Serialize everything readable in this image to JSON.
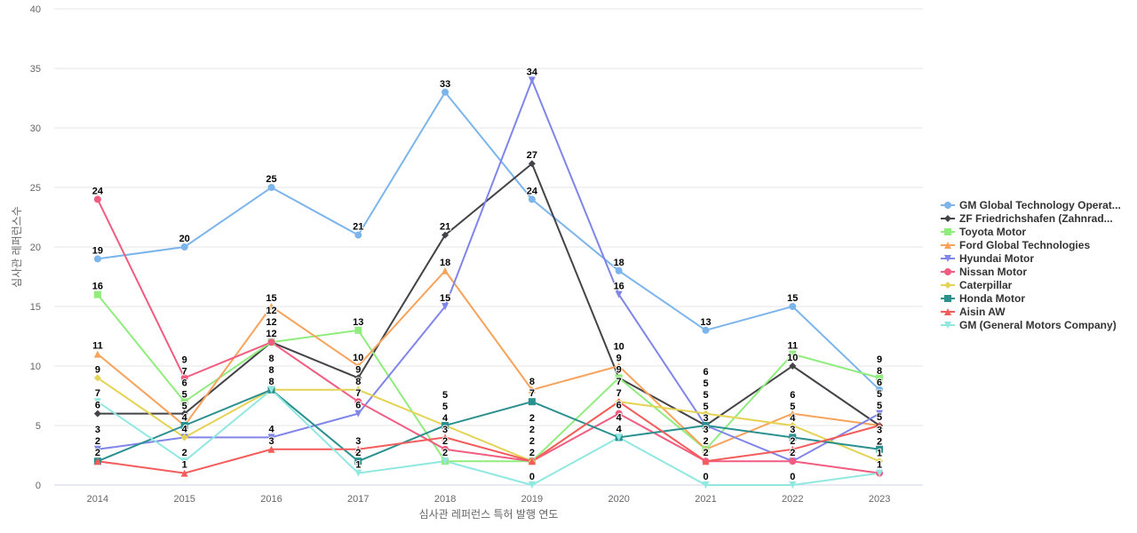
{
  "chart_data": {
    "type": "line",
    "title": "",
    "xlabel": "심사관 레퍼런스 특허 발행 연도",
    "ylabel": "심사관 레퍼런스수",
    "ylim": [
      0,
      40
    ],
    "yticks": [
      0,
      5,
      10,
      15,
      20,
      25,
      30,
      35,
      40
    ],
    "grid": true,
    "legend_position": "right",
    "categories": [
      "2014",
      "2015",
      "2016",
      "2017",
      "2018",
      "2019",
      "2020",
      "2021",
      "2022",
      "2023"
    ],
    "series": [
      {
        "name": "GM Global Technology Operat...",
        "color": "#7cb5ec",
        "marker": "circle",
        "values": [
          19,
          20,
          25,
          21,
          33,
          24,
          18,
          13,
          15,
          8
        ]
      },
      {
        "name": "ZF Friedrichshafen (Zahnrad...",
        "color": "#434348",
        "marker": "diamond",
        "values": [
          6,
          6,
          12,
          9,
          21,
          27,
          9,
          5,
          10,
          5
        ]
      },
      {
        "name": "Toyota Motor",
        "color": "#90ed7d",
        "marker": "square",
        "values": [
          16,
          7,
          12,
          13,
          2,
          2,
          9,
          3,
          11,
          9
        ]
      },
      {
        "name": "Ford Global Technologies",
        "color": "#f7a35c",
        "marker": "triangle",
        "values": [
          11,
          5,
          15,
          10,
          18,
          8,
          10,
          3,
          6,
          5
        ]
      },
      {
        "name": "Hyundai Motor",
        "color": "#8085e9",
        "marker": "triangle-down",
        "values": [
          3,
          4,
          4,
          6,
          15,
          34,
          16,
          5,
          2,
          6
        ]
      },
      {
        "name": "Nissan Motor",
        "color": "#f15c80",
        "marker": "circle",
        "values": [
          24,
          9,
          12,
          7,
          3,
          2,
          6,
          2,
          2,
          1
        ]
      },
      {
        "name": "Caterpillar",
        "color": "#e4d354",
        "marker": "diamond",
        "values": [
          9,
          4,
          8,
          8,
          5,
          2,
          7,
          6,
          5,
          2
        ]
      },
      {
        "name": "Honda Motor",
        "color": "#2b908f",
        "marker": "square",
        "values": [
          2,
          5,
          8,
          2,
          5,
          7,
          4,
          5,
          4,
          3
        ]
      },
      {
        "name": "Aisin AW",
        "color": "#f45b5b",
        "marker": "triangle",
        "values": [
          2,
          1,
          3,
          3,
          4,
          2,
          7,
          2,
          3,
          5
        ]
      },
      {
        "name": "GM (General Motors Company)",
        "color": "#91e8e1",
        "marker": "triangle-down",
        "values": [
          7,
          2,
          8,
          1,
          2,
          0,
          4,
          0,
          0,
          1
        ]
      }
    ]
  }
}
